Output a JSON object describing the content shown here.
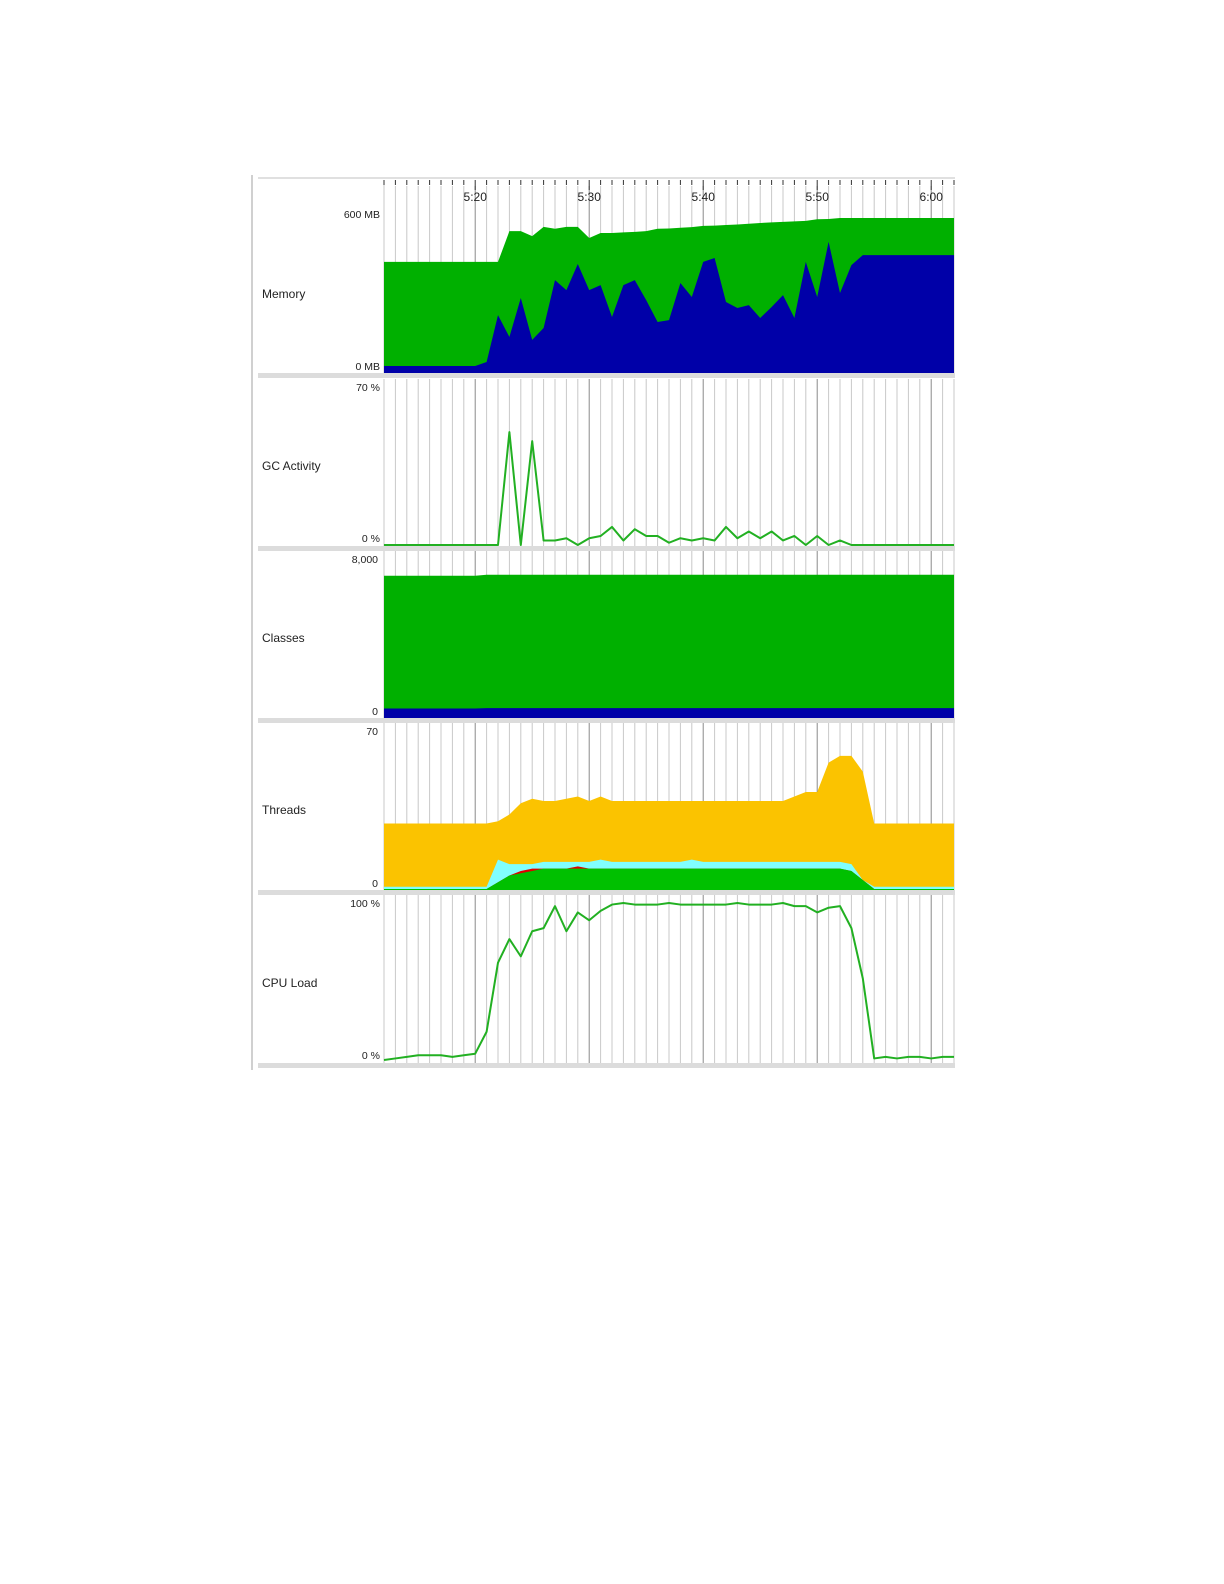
{
  "time_axis": {
    "tick_labels": [
      "5:20",
      "5:30",
      "5:40",
      "5:50",
      "6:00"
    ],
    "grid": "every minute, darker every 10 minutes"
  },
  "x": [
    "5:12",
    "5:13",
    "5:14",
    "5:15",
    "5:16",
    "5:17",
    "5:18",
    "5:19",
    "5:20",
    "5:21",
    "5:22",
    "5:23",
    "5:24",
    "5:25",
    "5:26",
    "5:27",
    "5:28",
    "5:29",
    "5:30",
    "5:31",
    "5:32",
    "5:33",
    "5:34",
    "5:35",
    "5:36",
    "5:37",
    "5:38",
    "5:39",
    "5:40",
    "5:41",
    "5:42",
    "5:43",
    "5:44",
    "5:45",
    "5:46",
    "5:47",
    "5:48",
    "5:49",
    "5:50",
    "5:51",
    "5:52",
    "5:53",
    "5:54",
    "5:55",
    "5:56",
    "5:57",
    "5:58",
    "5:59",
    "6:00",
    "6:01",
    "6:02"
  ],
  "chart_data": [
    {
      "type": "area",
      "label": "Memory",
      "y_tick_labels": [
        "600 MB",
        "0 MB"
      ],
      "ylim": [
        0,
        600
      ],
      "series": [
        {
          "color": "#00b000",
          "values": [
            418,
            418,
            418,
            418,
            418,
            418,
            418,
            418,
            418,
            418,
            418,
            535,
            535,
            516,
            551,
            544,
            551,
            551,
            509,
            528,
            528,
            530,
            532,
            535,
            544,
            545,
            548,
            550,
            555,
            556,
            558,
            560,
            563,
            566,
            568,
            570,
            572,
            574,
            580,
            581,
            585,
            585,
            585,
            585,
            585,
            585,
            585,
            585,
            585,
            585,
            585
          ]
        },
        {
          "color": "#0000a8",
          "values": [
            23,
            23,
            23,
            23,
            23,
            23,
            23,
            23,
            23,
            38,
            216,
            133,
            281,
            122,
            167,
            349,
            311,
            410,
            311,
            330,
            209,
            330,
            349,
            273,
            190,
            197,
            338,
            285,
            418,
            433,
            266,
            243,
            254,
            205,
            247,
            292,
            205,
            418,
            285,
            494,
            300,
            406,
            444,
            444,
            444,
            444,
            444,
            444,
            444,
            444,
            444
          ]
        }
      ]
    },
    {
      "type": "line",
      "label": "GC Activity",
      "y_tick_labels": [
        "70 %",
        "0 %"
      ],
      "ylim": [
        0,
        70
      ],
      "series": [
        {
          "color": "#22b022",
          "values": [
            0,
            0,
            0,
            0,
            0,
            0,
            0,
            0,
            0,
            0,
            0,
            50,
            0,
            46,
            2,
            2,
            3,
            0,
            3,
            4,
            8,
            2,
            7,
            4,
            4,
            1,
            3,
            2,
            3,
            2,
            8,
            3,
            6,
            3,
            6,
            2,
            4,
            0,
            4,
            0,
            2,
            0,
            0,
            0,
            0,
            0,
            0,
            0,
            0,
            0,
            0
          ]
        }
      ]
    },
    {
      "type": "area",
      "label": "Classes",
      "y_tick_labels": [
        "8,000",
        "0"
      ],
      "ylim": [
        0,
        8000
      ],
      "series": [
        {
          "color": "#00b000",
          "values": [
            7150,
            7150,
            7150,
            7150,
            7150,
            7150,
            7150,
            7150,
            7150,
            7200,
            7200,
            7200,
            7200,
            7200,
            7200,
            7200,
            7200,
            7200,
            7200,
            7200,
            7200,
            7200,
            7200,
            7200,
            7200,
            7200,
            7200,
            7200,
            7200,
            7200,
            7200,
            7200,
            7200,
            7200,
            7200,
            7200,
            7200,
            7200,
            7200,
            7200,
            7200,
            7200,
            7200,
            7200,
            7200,
            7200,
            7200,
            7200,
            7200,
            7200,
            7200
          ]
        },
        {
          "color": "#0000a8",
          "values": [
            430,
            430,
            430,
            430,
            430,
            430,
            430,
            430,
            430,
            450,
            450,
            450,
            450,
            450,
            450,
            450,
            450,
            450,
            450,
            450,
            450,
            450,
            450,
            450,
            450,
            450,
            450,
            450,
            450,
            450,
            450,
            450,
            450,
            450,
            450,
            450,
            450,
            450,
            450,
            450,
            450,
            450,
            450,
            450,
            450,
            450,
            450,
            450,
            450,
            450,
            450
          ]
        }
      ]
    },
    {
      "type": "area",
      "label": "Threads",
      "y_tick_labels": [
        "70",
        "0"
      ],
      "ylim": [
        0,
        70
      ],
      "series": [
        {
          "color": "#fbc300",
          "values": [
            29,
            29,
            29,
            29,
            29,
            29,
            29,
            29,
            29,
            29,
            30,
            33,
            38,
            40,
            39,
            39,
            40,
            41,
            39,
            41,
            39,
            39,
            39,
            39,
            39,
            39,
            39,
            39,
            39,
            39,
            39,
            39,
            39,
            39,
            39,
            39,
            41,
            43,
            43,
            56,
            59,
            59,
            52,
            29,
            29,
            29,
            29,
            29,
            29,
            29,
            29
          ]
        },
        {
          "color": "#80ffff",
          "values": [
            1,
            1,
            1,
            1,
            1,
            1,
            1,
            1,
            1,
            1,
            13,
            11,
            11,
            11,
            12,
            12,
            12,
            12,
            12,
            13,
            12,
            12,
            12,
            12,
            12,
            12,
            12,
            13,
            12,
            12,
            12,
            12,
            12,
            12,
            12,
            12,
            12,
            12,
            12,
            12,
            12,
            11,
            4,
            1,
            1,
            1,
            1,
            1,
            1,
            1,
            1
          ]
        },
        {
          "color": "#e00000",
          "values": [
            0,
            0,
            0,
            0,
            0,
            0,
            0,
            0,
            0,
            0,
            3,
            6,
            8,
            9,
            9,
            9,
            9,
            10,
            9,
            9,
            9,
            9,
            9,
            9,
            9,
            9,
            9,
            9,
            9,
            9,
            9,
            9,
            9,
            9,
            9,
            9,
            9,
            9,
            9,
            9,
            9,
            8,
            4,
            0,
            0,
            0,
            0,
            0,
            0,
            0,
            0
          ]
        },
        {
          "color": "#00c000",
          "values": [
            0,
            0,
            0,
            0,
            0,
            0,
            0,
            0,
            0,
            0,
            3,
            6,
            7,
            8,
            9,
            9,
            9,
            9,
            9,
            9,
            9,
            9,
            9,
            9,
            9,
            9,
            9,
            9,
            9,
            9,
            9,
            9,
            9,
            9,
            9,
            9,
            9,
            9,
            9,
            9,
            9,
            8,
            4,
            0,
            0,
            0,
            0,
            0,
            0,
            0,
            0
          ]
        }
      ]
    },
    {
      "type": "line",
      "label": "CPU Load",
      "y_tick_labels": [
        "100 %",
        "0 %"
      ],
      "ylim": [
        0,
        100
      ],
      "series": [
        {
          "color": "#22b022",
          "values": [
            0,
            1,
            2,
            3,
            3,
            3,
            2,
            3,
            4,
            18,
            62,
            77,
            66,
            82,
            84,
            98,
            82,
            94,
            89,
            95,
            99,
            100,
            99,
            99,
            99,
            100,
            99,
            99,
            99,
            99,
            99,
            100,
            99,
            99,
            99,
            100,
            98,
            98,
            94,
            97,
            98,
            84,
            52,
            1,
            2,
            1,
            2,
            2,
            1,
            2,
            2
          ]
        }
      ]
    }
  ]
}
